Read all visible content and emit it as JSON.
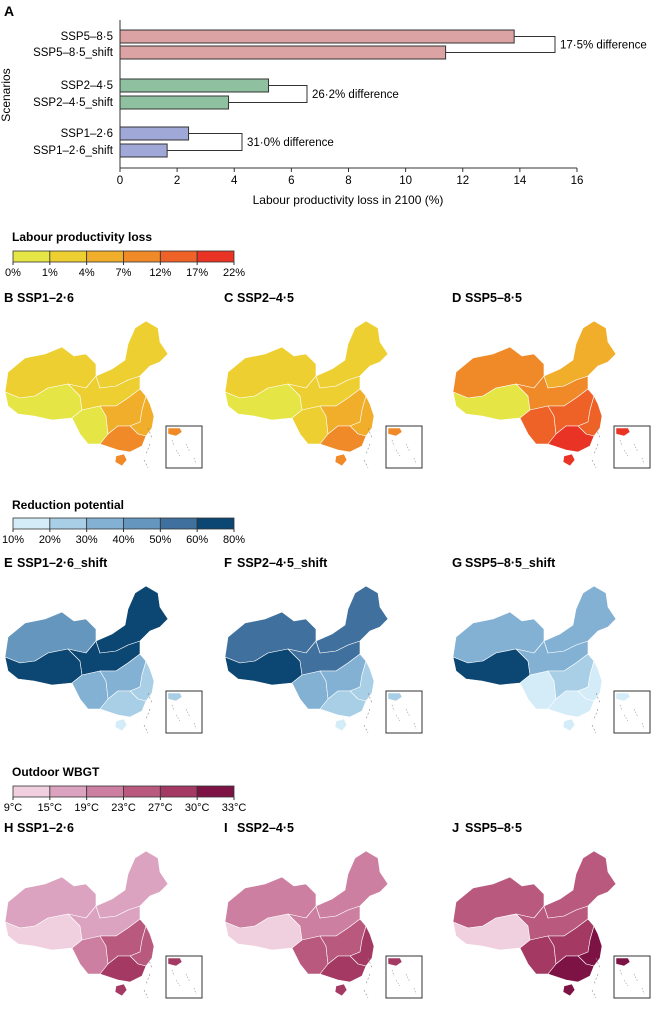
{
  "panel_a": {
    "label": "A"
  },
  "chart_data": {
    "type": "bar",
    "orientation": "horizontal",
    "title": "",
    "xlabel": "Labour productivity loss in 2100 (%)",
    "ylabel": "Scenarios",
    "xlim": [
      0,
      16
    ],
    "xticks": [
      0,
      2,
      4,
      6,
      8,
      10,
      12,
      14,
      16
    ],
    "categories": [
      "SSP5–8·5",
      "SSP5–8·5_shift",
      "SSP2–4·5",
      "SSP2–4·5_shift",
      "SSP1–2·6",
      "SSP1–2·6_shift"
    ],
    "values": [
      13.8,
      11.4,
      5.2,
      3.8,
      2.4,
      1.65
    ],
    "colors": [
      "#dba3a3",
      "#dba3a3",
      "#8fc1a0",
      "#8fc1a0",
      "#9fa8d6",
      "#9fa8d6"
    ],
    "annotations": [
      {
        "pair": [
          0,
          1
        ],
        "text": "17·5% difference"
      },
      {
        "pair": [
          2,
          3
        ],
        "text": "26·2% difference"
      },
      {
        "pair": [
          4,
          5
        ],
        "text": "31·0% difference"
      }
    ]
  },
  "legend_loss": {
    "title": "Labour productivity loss",
    "ticks": [
      "0%",
      "1%",
      "4%",
      "7%",
      "12%",
      "17%",
      "22%"
    ],
    "colors": [
      "#e5e645",
      "#edcf32",
      "#f0ae2a",
      "#f08a28",
      "#ee6227",
      "#e83325"
    ]
  },
  "legend_reduction": {
    "title": "Reduction potential",
    "ticks": [
      "10%",
      "20%",
      "30%",
      "40%",
      "50%",
      "60%",
      "80%"
    ],
    "colors": [
      "#d3ecf8",
      "#a8cfe6",
      "#82b1d4",
      "#6596bd",
      "#40709d",
      "#0c4672"
    ]
  },
  "legend_wbgt": {
    "title": "Outdoor WBGT",
    "ticks": [
      "9°C",
      "15°C",
      "19°C",
      "23°C",
      "27°C",
      "30°C",
      "33°C"
    ],
    "colors": [
      "#f0cfdf",
      "#dba3c0",
      "#cc7fa0",
      "#b9597e",
      "#a43a63",
      "#7d1345"
    ]
  },
  "maps": [
    {
      "label": "B",
      "title": "SSP1–2·6",
      "scheme": "loss",
      "levels": {
        "nw": 2,
        "tibet": 1,
        "north": 2,
        "ne": 2,
        "center": 3,
        "sw": 1,
        "south": 4,
        "east": 3,
        "hainan": 4
      }
    },
    {
      "label": "C",
      "title": "SSP2–4·5",
      "scheme": "loss",
      "levels": {
        "nw": 2,
        "tibet": 1,
        "north": 2,
        "ne": 2,
        "center": 3,
        "sw": 2,
        "south": 4,
        "east": 3,
        "hainan": 4
      }
    },
    {
      "label": "D",
      "title": "SSP5–8·5",
      "scheme": "loss",
      "levels": {
        "nw": 4,
        "tibet": 1,
        "north": 4,
        "ne": 3,
        "center": 5,
        "sw": 5,
        "south": 6,
        "east": 5,
        "hainan": 6
      }
    },
    {
      "label": "E",
      "title": "SSP1–2·6_shift",
      "scheme": "reduction",
      "levels": {
        "nw": 4,
        "tibet": 6,
        "north": 6,
        "ne": 6,
        "center": 3,
        "sw": 3,
        "south": 2,
        "east": 2,
        "hainan": 1
      }
    },
    {
      "label": "F",
      "title": "SSP2–4·5_shift",
      "scheme": "reduction",
      "levels": {
        "nw": 5,
        "tibet": 6,
        "north": 5,
        "ne": 5,
        "center": 3,
        "sw": 3,
        "south": 2,
        "east": 2,
        "hainan": 1
      }
    },
    {
      "label": "G",
      "title": "SSP5–8·5_shift",
      "scheme": "reduction",
      "levels": {
        "nw": 3,
        "tibet": 6,
        "north": 3,
        "ne": 3,
        "center": 2,
        "sw": 1,
        "south": 1,
        "east": 1,
        "hainan": 1
      }
    },
    {
      "label": "H",
      "title": "SSP1–2·6",
      "scheme": "wbgt",
      "levels": {
        "nw": 2,
        "tibet": 1,
        "north": 2,
        "ne": 2,
        "center": 4,
        "sw": 3,
        "south": 5,
        "east": 4,
        "hainan": 5
      }
    },
    {
      "label": "I",
      "title": "SSP2–4·5",
      "scheme": "wbgt",
      "levels": {
        "nw": 3,
        "tibet": 1,
        "north": 3,
        "ne": 3,
        "center": 4,
        "sw": 4,
        "south": 5,
        "east": 5,
        "hainan": 5
      }
    },
    {
      "label": "J",
      "title": "SSP5–8·5",
      "scheme": "wbgt",
      "levels": {
        "nw": 4,
        "tibet": 1,
        "north": 4,
        "ne": 4,
        "center": 5,
        "sw": 5,
        "south": 6,
        "east": 6,
        "hainan": 6
      }
    }
  ]
}
